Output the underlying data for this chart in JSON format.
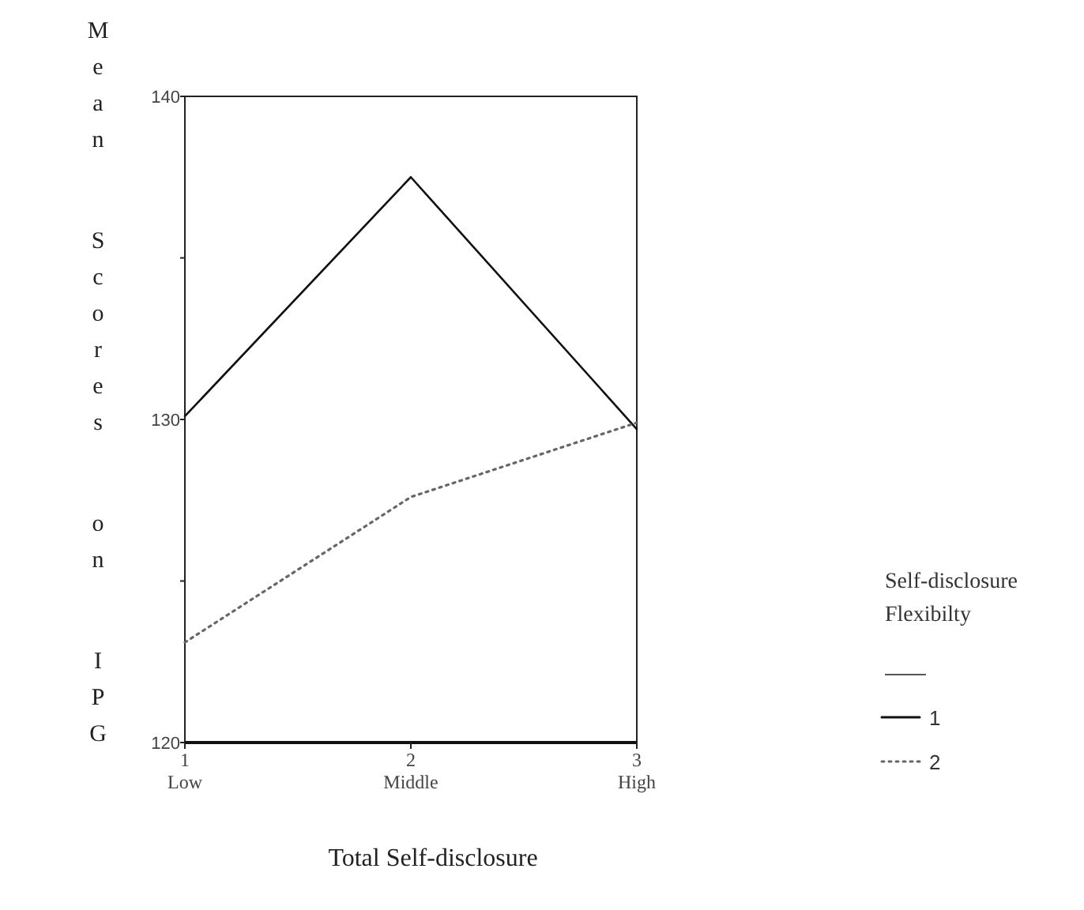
{
  "chart_data": {
    "type": "line",
    "xlabel": "Total Self-disclosure",
    "ylabel": "Mean Scores on IPG",
    "legend_title": "Self-disclosure\nFlexibilty",
    "x": [
      1,
      2,
      3
    ],
    "xlim": [
      1,
      3
    ],
    "xticks": [
      {
        "value": 1,
        "label": "1\nLow"
      },
      {
        "value": 2,
        "label": "2\nMiddle"
      },
      {
        "value": 3,
        "label": "3\nHigh"
      }
    ],
    "ylim": [
      120,
      140
    ],
    "yticks": [
      120,
      {
        "value": 125,
        "label": null
      },
      130,
      {
        "value": 135,
        "label": null
      },
      140
    ],
    "legend": "right",
    "marker": "none",
    "series": [
      {
        "name": "1",
        "color": "#111111",
        "values": [
          130.1,
          137.5,
          129.7
        ],
        "line_style": "solid"
      },
      {
        "name": "2",
        "color": "#666666",
        "values": [
          123.1,
          127.6,
          129.9
        ],
        "line_style": "dotted"
      }
    ]
  }
}
